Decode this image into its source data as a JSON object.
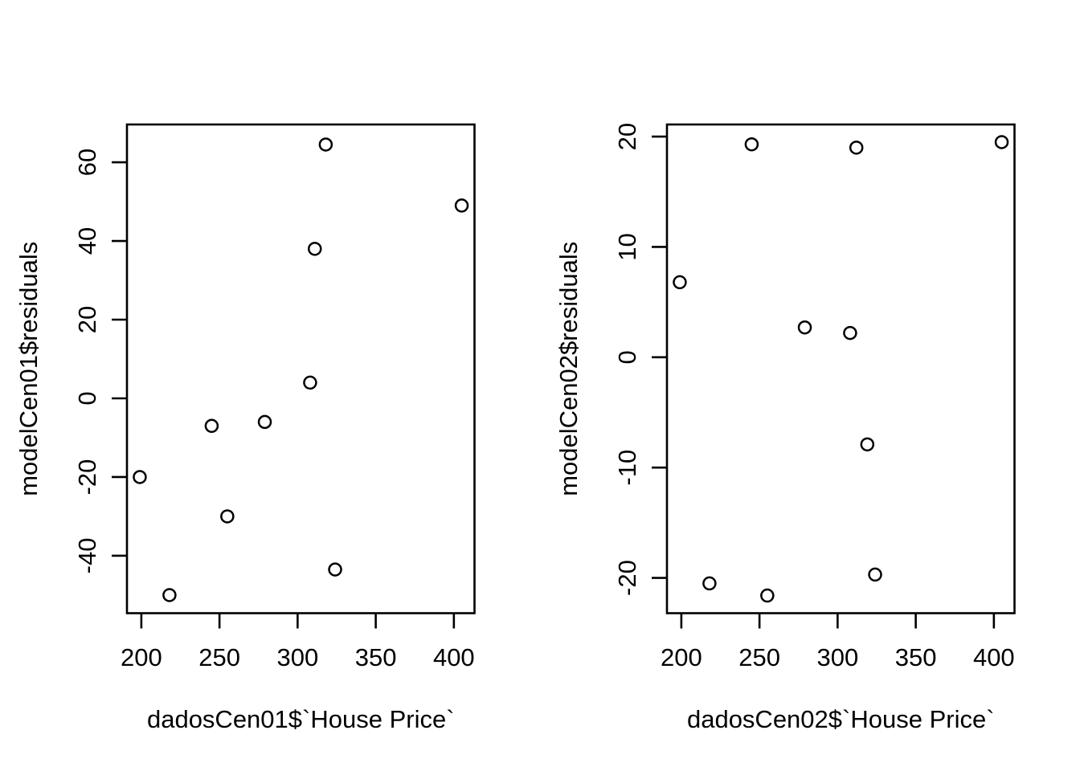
{
  "figure": {
    "background": "#ffffff",
    "foreground": "#000000",
    "marker": "open-circle"
  },
  "chart_data": [
    {
      "type": "scatter",
      "panel": "left",
      "title": "",
      "xlabel": "dadosCen01$`House Price`",
      "ylabel": "modelCen01$residuals",
      "x_ticks": [
        200,
        250,
        300,
        350,
        400
      ],
      "y_ticks": [
        -40,
        -20,
        0,
        20,
        40,
        60
      ],
      "xlim": [
        190.8,
        413.2
      ],
      "ylim": [
        -54.6,
        69.6
      ],
      "grid": false,
      "legend": null,
      "points": [
        {
          "x": 199,
          "y": -20
        },
        {
          "x": 218,
          "y": -50
        },
        {
          "x": 245,
          "y": -7
        },
        {
          "x": 255,
          "y": -30
        },
        {
          "x": 279,
          "y": -6
        },
        {
          "x": 308,
          "y": 4
        },
        {
          "x": 311,
          "y": 38
        },
        {
          "x": 318,
          "y": 64.5
        },
        {
          "x": 324,
          "y": -43.5
        },
        {
          "x": 405,
          "y": 49
        }
      ]
    },
    {
      "type": "scatter",
      "panel": "right",
      "title": "",
      "xlabel": "dadosCen02$`House Price`",
      "ylabel": "modelCen02$residuals",
      "x_ticks": [
        200,
        250,
        300,
        350,
        400
      ],
      "y_ticks": [
        -20,
        -10,
        0,
        10,
        20
      ],
      "xlim": [
        190.8,
        413.2
      ],
      "ylim": [
        -23.2,
        21.1
      ],
      "grid": false,
      "legend": null,
      "points": [
        {
          "x": 199,
          "y": 6.8
        },
        {
          "x": 218,
          "y": -20.5
        },
        {
          "x": 245,
          "y": 19.3
        },
        {
          "x": 255,
          "y": -21.6
        },
        {
          "x": 279,
          "y": 2.7
        },
        {
          "x": 308,
          "y": 2.2
        },
        {
          "x": 312,
          "y": 19.0
        },
        {
          "x": 319,
          "y": -7.9
        },
        {
          "x": 324,
          "y": -19.7
        },
        {
          "x": 405,
          "y": 19.5
        }
      ]
    }
  ]
}
